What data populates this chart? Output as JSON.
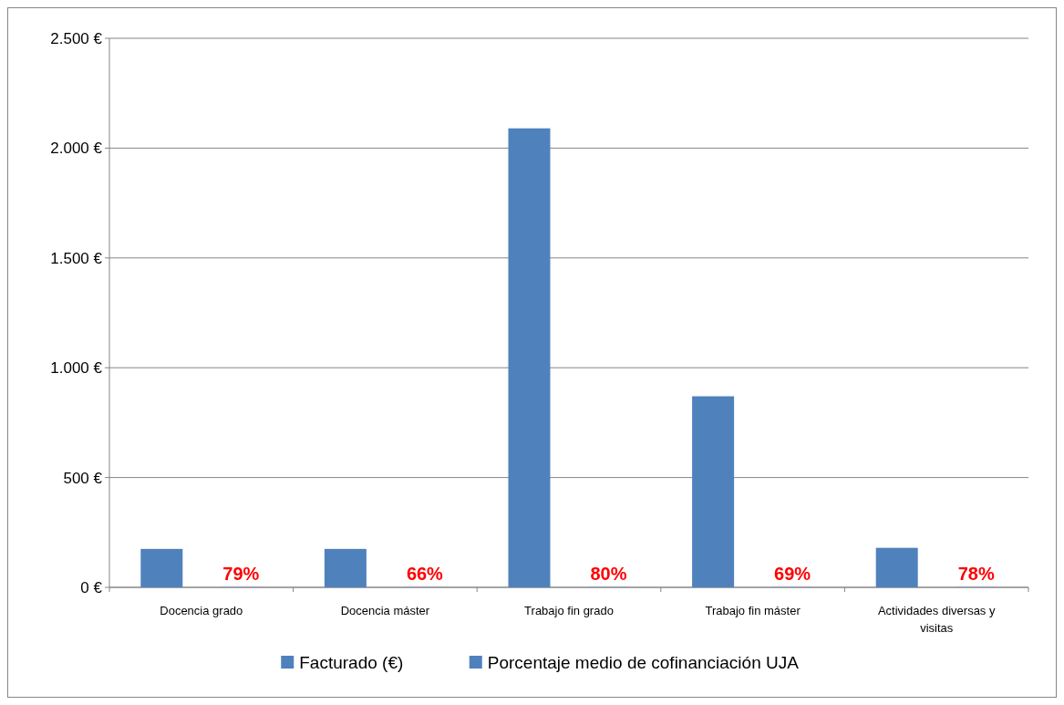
{
  "chart_data": {
    "type": "bar",
    "categories": [
      "Docencia grado",
      "Docencia máster",
      "Trabajo fin grado",
      "Trabajo fin máster",
      "Actividades diversas y visitas"
    ],
    "series": [
      {
        "name": "Facturado (€)",
        "color": "#4f81bd",
        "values": [
          175,
          175,
          2090,
          870,
          180
        ]
      },
      {
        "name": "Porcentaje medio de cofinanciación UJA",
        "color": "#4f81bd",
        "values": [
          0.79,
          0.66,
          0.8,
          0.69,
          0.78
        ],
        "value_labels": [
          "79%",
          "66%",
          "80%",
          "69%",
          "78%"
        ]
      }
    ],
    "ylim": [
      0,
      2500
    ],
    "yticks": [
      {
        "value": 0,
        "label": "0 €"
      },
      {
        "value": 500,
        "label": "500 €"
      },
      {
        "value": 1000,
        "label": "1.000 €"
      },
      {
        "value": 1500,
        "label": "1.500 €"
      },
      {
        "value": 2000,
        "label": "2.000 €"
      },
      {
        "value": 2500,
        "label": "2.500 €"
      }
    ],
    "grid": "y",
    "legend": "bottom"
  }
}
